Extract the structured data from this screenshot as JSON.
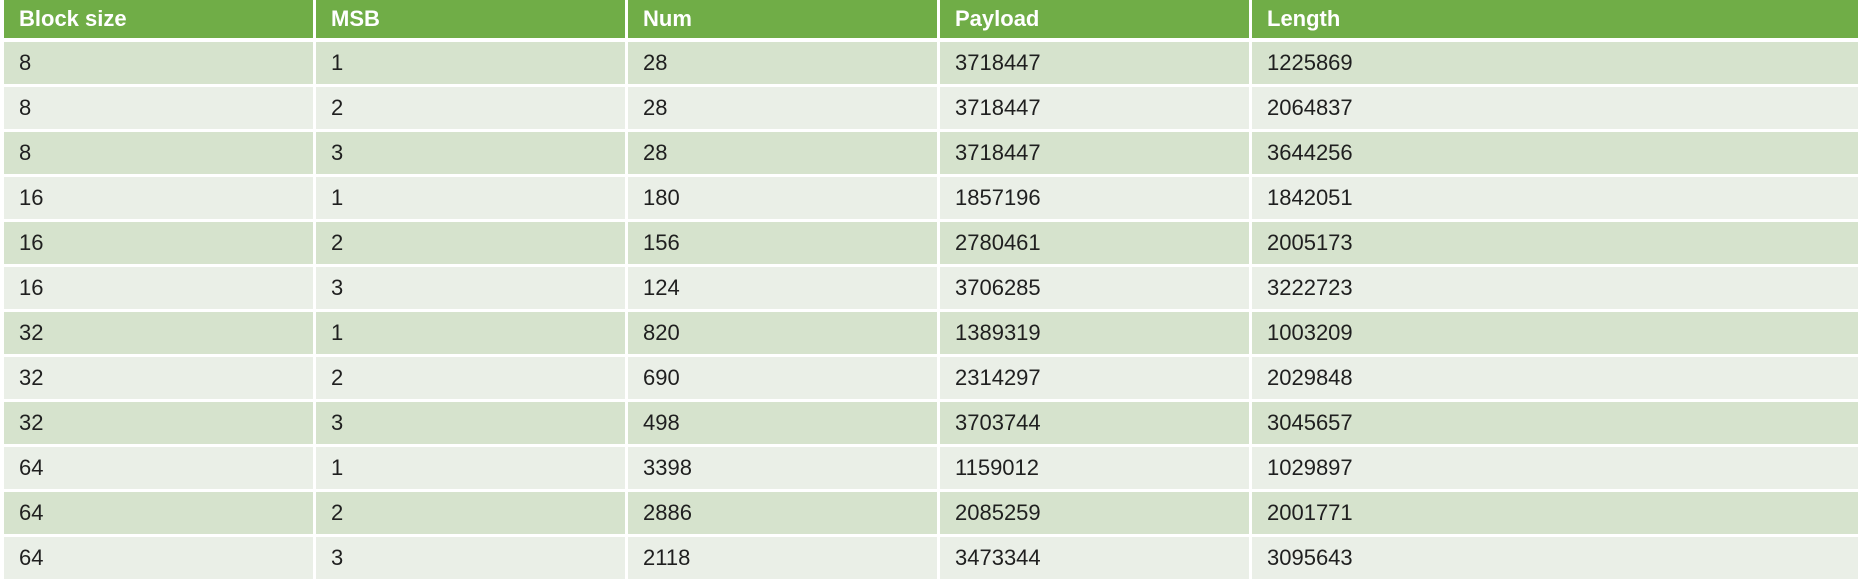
{
  "colors": {
    "header_bg": "#70ad47",
    "header_text": "#ffffff",
    "row_odd_bg": "#d6e3cd",
    "row_even_bg": "#eaefe7",
    "cell_text": "#1f1f1f"
  },
  "table": {
    "headers": [
      "Block size",
      "MSB",
      "Num",
      "Payload",
      "Length"
    ],
    "rows": [
      [
        "8",
        "1",
        "28",
        "3718447",
        "1225869"
      ],
      [
        "8",
        "2",
        "28",
        "3718447",
        "2064837"
      ],
      [
        "8",
        "3",
        "28",
        "3718447",
        "3644256"
      ],
      [
        "16",
        "1",
        "180",
        "1857196",
        "1842051"
      ],
      [
        "16",
        "2",
        "156",
        "2780461",
        "2005173"
      ],
      [
        "16",
        "3",
        "124",
        "3706285",
        "3222723"
      ],
      [
        "32",
        "1",
        "820",
        "1389319",
        "1003209"
      ],
      [
        "32",
        "2",
        "690",
        "2314297",
        "2029848"
      ],
      [
        "32",
        "3",
        "498",
        "3703744",
        "3045657"
      ],
      [
        "64",
        "1",
        "3398",
        "1159012",
        "1029897"
      ],
      [
        "64",
        "2",
        "2886",
        "2085259",
        "2001771"
      ],
      [
        "64",
        "3",
        "2118",
        "3473344",
        "3095643"
      ]
    ]
  }
}
